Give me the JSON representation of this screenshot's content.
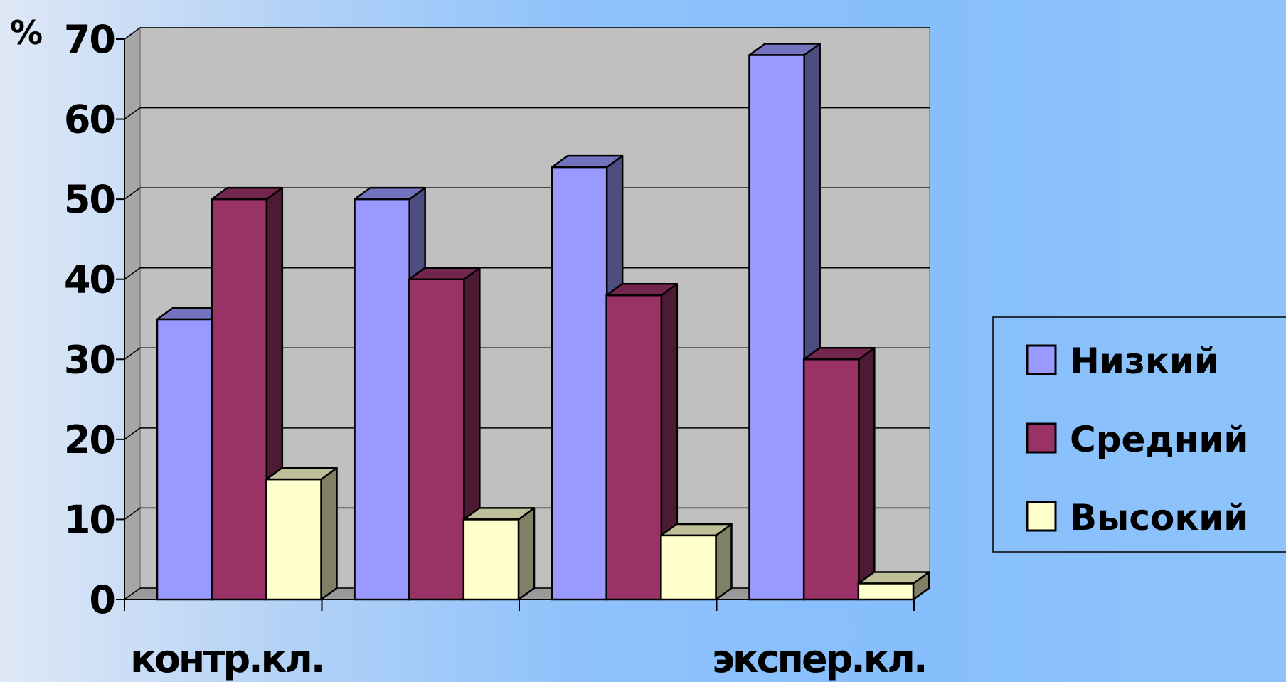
{
  "chart_data": {
    "type": "bar",
    "unit_label": "%",
    "categories": [
      "контр.кл.",
      "",
      "",
      "экспер.кл."
    ],
    "series": [
      {
        "name": "Низкий",
        "values": [
          35,
          50,
          54,
          68
        ],
        "color": "#9999ff",
        "side_color": "#4d4d80",
        "top_color": "#7373bf"
      },
      {
        "name": "Средний",
        "values": [
          50,
          40,
          38,
          30
        ],
        "color": "#993366",
        "side_color": "#4d1a33",
        "top_color": "#73264d"
      },
      {
        "name": "Высокий",
        "values": [
          15,
          10,
          8,
          2
        ],
        "color": "#ffffcc",
        "side_color": "#808066",
        "top_color": "#bfbf99"
      }
    ],
    "ylim": [
      0,
      70
    ],
    "yticks": [
      "0",
      "10",
      "20",
      "30",
      "40",
      "50",
      "60",
      "70"
    ],
    "grid": true,
    "legend_position": "right",
    "wall_color": "#c0c0c0"
  }
}
